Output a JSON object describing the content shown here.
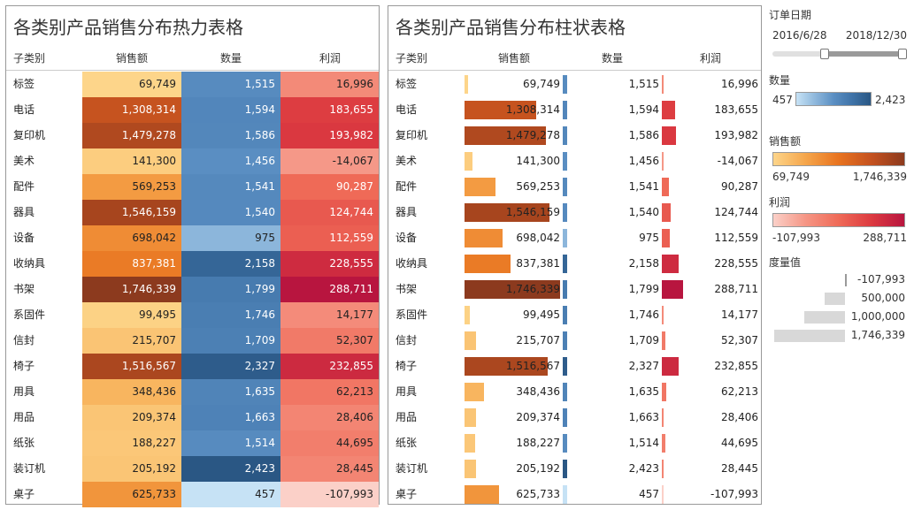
{
  "titles": {
    "heatmap": "各类别产品销售分布热力表格",
    "bars": "各类别产品销售分布柱状表格"
  },
  "columns": {
    "subcategory": "子类别",
    "sales": "销售额",
    "quantity": "数量",
    "profit": "利润"
  },
  "chart_data": [
    {
      "type": "heatmap",
      "title": "各类别产品销售分布热力表格",
      "columns": [
        "子类别",
        "销售额",
        "数量",
        "利润"
      ],
      "rows": [
        {
          "name": "标签",
          "sales": 69749,
          "sales_text": "69,749",
          "quantity": 1515,
          "quantity_text": "1,515",
          "profit": 16996,
          "profit_text": "16,996"
        },
        {
          "name": "电话",
          "sales": 1308314,
          "sales_text": "1,308,314",
          "quantity": 1594,
          "quantity_text": "1,594",
          "profit": 183655,
          "profit_text": "183,655"
        },
        {
          "name": "复印机",
          "sales": 1479278,
          "sales_text": "1,479,278",
          "quantity": 1586,
          "quantity_text": "1,586",
          "profit": 193982,
          "profit_text": "193,982"
        },
        {
          "name": "美术",
          "sales": 141300,
          "sales_text": "141,300",
          "quantity": 1456,
          "quantity_text": "1,456",
          "profit": -14067,
          "profit_text": "-14,067"
        },
        {
          "name": "配件",
          "sales": 569253,
          "sales_text": "569,253",
          "quantity": 1541,
          "quantity_text": "1,541",
          "profit": 90287,
          "profit_text": "90,287"
        },
        {
          "name": "器具",
          "sales": 1546159,
          "sales_text": "1,546,159",
          "quantity": 1540,
          "quantity_text": "1,540",
          "profit": 124744,
          "profit_text": "124,744"
        },
        {
          "name": "设备",
          "sales": 698042,
          "sales_text": "698,042",
          "quantity": 975,
          "quantity_text": "975",
          "profit": 112559,
          "profit_text": "112,559"
        },
        {
          "name": "收纳具",
          "sales": 837381,
          "sales_text": "837,381",
          "quantity": 2158,
          "quantity_text": "2,158",
          "profit": 228555,
          "profit_text": "228,555"
        },
        {
          "name": "书架",
          "sales": 1746339,
          "sales_text": "1,746,339",
          "quantity": 1799,
          "quantity_text": "1,799",
          "profit": 288711,
          "profit_text": "288,711"
        },
        {
          "name": "系固件",
          "sales": 99495,
          "sales_text": "99,495",
          "quantity": 1746,
          "quantity_text": "1,746",
          "profit": 14177,
          "profit_text": "14,177"
        },
        {
          "name": "信封",
          "sales": 215707,
          "sales_text": "215,707",
          "quantity": 1709,
          "quantity_text": "1,709",
          "profit": 52307,
          "profit_text": "52,307"
        },
        {
          "name": "椅子",
          "sales": 1516567,
          "sales_text": "1,516,567",
          "quantity": 2327,
          "quantity_text": "2,327",
          "profit": 232855,
          "profit_text": "232,855"
        },
        {
          "name": "用具",
          "sales": 348436,
          "sales_text": "348,436",
          "quantity": 1635,
          "quantity_text": "1,635",
          "profit": 62213,
          "profit_text": "62,213"
        },
        {
          "name": "用品",
          "sales": 209374,
          "sales_text": "209,374",
          "quantity": 1663,
          "quantity_text": "1,663",
          "profit": 28406,
          "profit_text": "28,406"
        },
        {
          "name": "纸张",
          "sales": 188227,
          "sales_text": "188,227",
          "quantity": 1514,
          "quantity_text": "1,514",
          "profit": 44695,
          "profit_text": "44,695"
        },
        {
          "name": "装订机",
          "sales": 205192,
          "sales_text": "205,192",
          "quantity": 2423,
          "quantity_text": "2,423",
          "profit": 28445,
          "profit_text": "28,445"
        },
        {
          "name": "桌子",
          "sales": 625733,
          "sales_text": "625,733",
          "quantity": 457,
          "quantity_text": "457",
          "profit": -107993,
          "profit_text": "-107,993"
        }
      ]
    },
    {
      "type": "bar",
      "title": "各类别产品销售分布柱状表格",
      "note": "same rows as the heatmap table; bars encode sales, quantity and profit",
      "source": "rows of chart_data[0]"
    }
  ],
  "legend": {
    "date_filter": {
      "title": "订单日期",
      "start": "2016/6/28",
      "end": "2018/12/30"
    },
    "quantity": {
      "title": "数量",
      "min": "457",
      "max": "2,423",
      "color_low": "#c6e2f5",
      "color_high": "#2a5784"
    },
    "sales": {
      "title": "销售额",
      "min": "69,749",
      "max": "1,746,339",
      "color_low": "#fdd58a",
      "color_high": "#8c3a1e"
    },
    "profit": {
      "title": "利润",
      "min": "-107,993",
      "max": "288,711",
      "color_low": "#fbd0c8",
      "color_high": "#b8153f"
    },
    "measure": {
      "title": "度量值",
      "values": [
        -107993,
        500000,
        1000000,
        1746339
      ],
      "labels": [
        "-107,993",
        "500,000",
        "1,000,000",
        "1,746,339"
      ]
    }
  }
}
